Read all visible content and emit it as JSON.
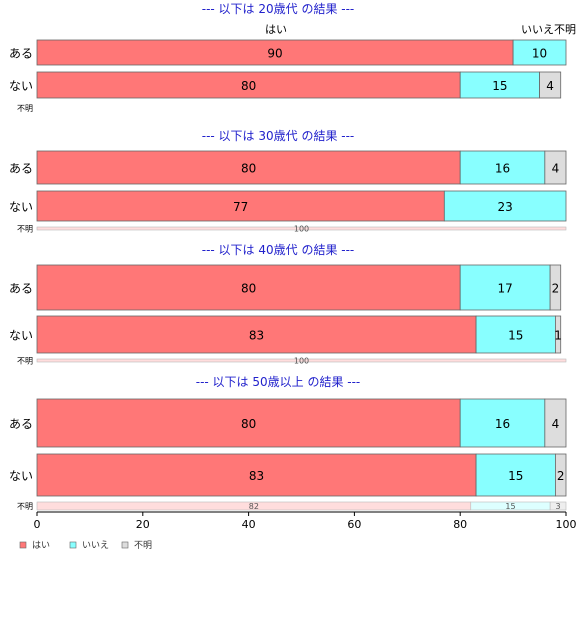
{
  "chart_data": {
    "type": "bar",
    "orientation": "horizontal",
    "stacked": true,
    "xlim": [
      0,
      100
    ],
    "x_ticks": [
      "0",
      "20",
      "40",
      "60",
      "80",
      "100"
    ],
    "colors": {
      "はい": "#ff7777",
      "いいえ": "#88ffff",
      "不明": "#dddddd"
    },
    "legend": {
      "placement": "bottom-left",
      "items": [
        {
          "label": "はい",
          "color": "#ff7777"
        },
        {
          "label": "いいえ",
          "color": "#88ffff"
        },
        {
          "label": "不明",
          "color": "#dddddd"
        }
      ]
    },
    "header_labels": {
      "yes": "はい",
      "no_unknown": "いいえ不明"
    },
    "panels": [
      {
        "title": "--- 以下は 20歳代 の結果 ---",
        "rows": [
          {
            "label": "ある",
            "values": [
              90,
              10,
              0
            ],
            "value_labels": [
              "90",
              "10",
              ""
            ]
          },
          {
            "label": "ない",
            "values": [
              80,
              15,
              4
            ],
            "value_labels": [
              "80",
              "15",
              "4"
            ]
          },
          {
            "label": "不明",
            "values": [],
            "value_labels": []
          }
        ]
      },
      {
        "title": "--- 以下は 30歳代 の結果 ---",
        "rows": [
          {
            "label": "ある",
            "values": [
              80,
              16,
              4
            ],
            "value_labels": [
              "80",
              "16",
              "4"
            ]
          },
          {
            "label": "ない",
            "values": [
              77,
              23,
              0
            ],
            "value_labels": [
              "77",
              "23",
              ""
            ]
          },
          {
            "label": "不明",
            "values": [
              100,
              0,
              0
            ],
            "value_labels": [
              "100",
              "",
              ""
            ]
          }
        ]
      },
      {
        "title": "--- 以下は 40歳代 の結果 ---",
        "rows": [
          {
            "label": "ある",
            "values": [
              80,
              17,
              2
            ],
            "value_labels": [
              "80",
              "17",
              "2"
            ]
          },
          {
            "label": "ない",
            "values": [
              83,
              15,
              1
            ],
            "value_labels": [
              "83",
              "15",
              "1"
            ]
          },
          {
            "label": "不明",
            "values": [
              100,
              0,
              0
            ],
            "value_labels": [
              "100",
              "",
              ""
            ]
          }
        ]
      },
      {
        "title": "--- 以下は 50歳以上 の結果 ---",
        "rows": [
          {
            "label": "ある",
            "values": [
              80,
              16,
              4
            ],
            "value_labels": [
              "80",
              "16",
              "4"
            ]
          },
          {
            "label": "ない",
            "values": [
              83,
              15,
              2
            ],
            "value_labels": [
              "83",
              "15",
              "2"
            ]
          },
          {
            "label": "不明",
            "values": [
              82,
              15,
              3
            ],
            "value_labels": [
              "82",
              "15",
              "3"
            ]
          }
        ]
      }
    ]
  }
}
